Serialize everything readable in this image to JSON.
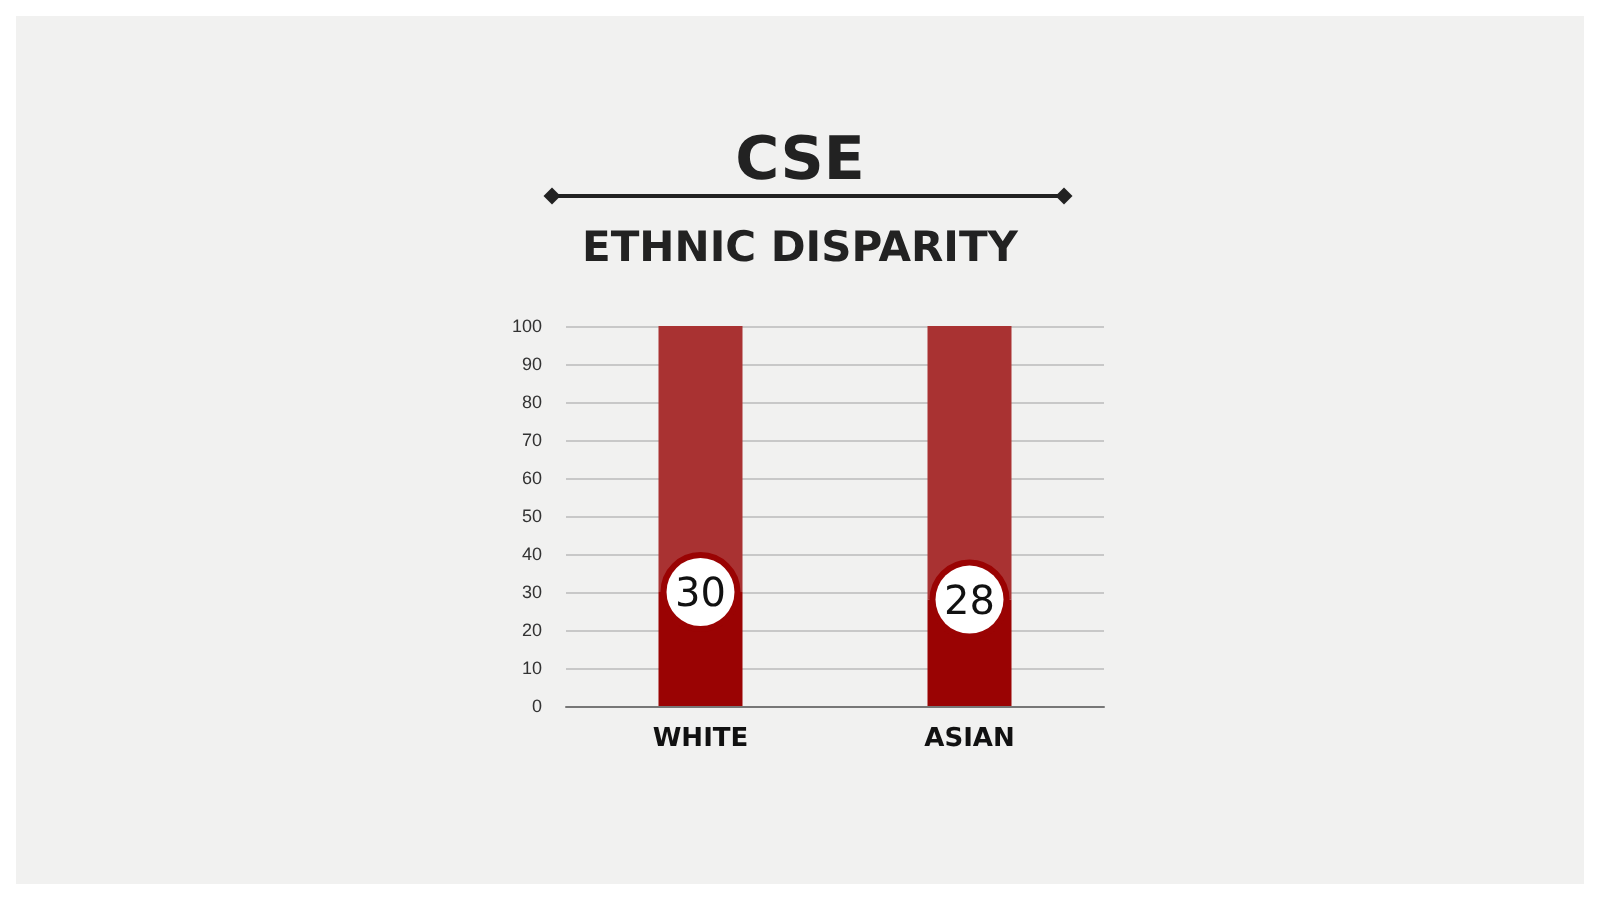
{
  "chart_data": {
    "type": "bar",
    "title": "CSE",
    "subtitle": "ETHNIC DISPARITY",
    "categories": [
      "WHITE",
      "ASIAN"
    ],
    "stacked": true,
    "series": [
      {
        "color": "#9a0303",
        "values": [
          30,
          28
        ],
        "value_labels": [
          "30",
          "28"
        ]
      },
      {
        "color": "#a93232",
        "values": [
          70,
          72
        ]
      }
    ],
    "ylim": [
      0,
      100
    ],
    "yticks": [
      0,
      10,
      20,
      30,
      40,
      50,
      60,
      70,
      80,
      90,
      100
    ],
    "grid": "y"
  }
}
